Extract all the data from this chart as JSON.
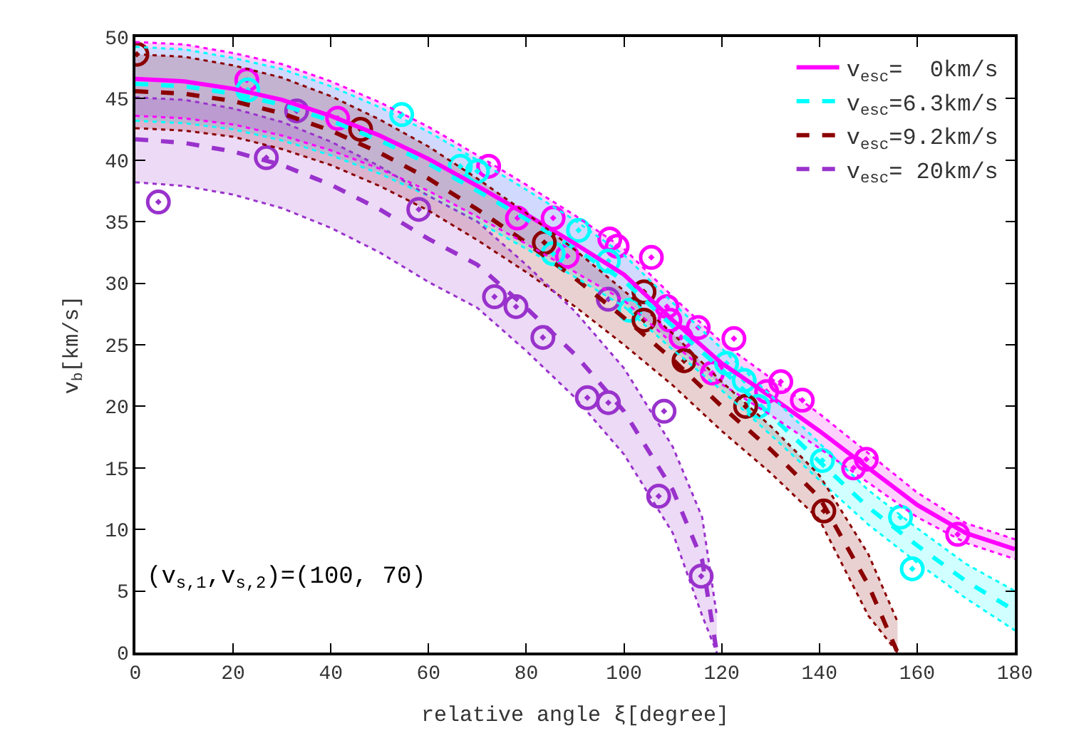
{
  "chart_data": {
    "type": "line",
    "xlabel": "relative angle ξ[degree]",
    "ylabel": "v$_{b}$[km/s]",
    "xlim": [
      0,
      180
    ],
    "xticks": [
      0,
      20,
      40,
      60,
      80,
      100,
      120,
      140,
      160,
      180
    ],
    "ylim": [
      0,
      50
    ],
    "yticks": [
      0,
      5,
      10,
      15,
      20,
      25,
      30,
      35,
      40,
      45,
      50
    ],
    "legend": "top right",
    "marker": "none",
    "annotations": [
      "(v$_{s,1}$,v$_{s,2}$)=(100, 70)"
    ],
    "series": [
      {
        "name": "v$_{esc}$=  0km/s",
        "color": "#ff00ff",
        "line_style": "solid",
        "x": [
          0,
          10,
          20,
          30,
          40,
          50,
          60,
          70,
          80,
          90,
          100,
          110,
          120,
          130,
          140,
          150,
          160,
          170,
          180
        ],
        "values": [
          46.6,
          46.4,
          45.8,
          44.9,
          43.6,
          42.0,
          40.1,
          37.9,
          35.6,
          33.2,
          30.7,
          27.0,
          23.5,
          20.8,
          18.0,
          15.0,
          12.0,
          9.7,
          8.4
        ],
        "lower": [
          43.6,
          43.4,
          42.9,
          42.0,
          40.8,
          39.3,
          37.5,
          35.4,
          33.2,
          30.9,
          28.6,
          25.1,
          21.8,
          19.3,
          16.6,
          13.8,
          11.0,
          8.9,
          7.6
        ],
        "upper": [
          49.6,
          49.4,
          48.7,
          47.8,
          46.4,
          44.7,
          42.7,
          40.4,
          38.0,
          35.5,
          32.8,
          28.9,
          25.2,
          22.3,
          19.4,
          16.2,
          13.0,
          10.5,
          9.2
        ]
      },
      {
        "name": "v$_{esc}$=6.3km/s",
        "color": "#00ffff",
        "line_style": "dashed",
        "x": [
          0,
          10,
          20,
          30,
          40,
          50,
          60,
          70,
          80,
          90,
          100,
          110,
          120,
          130,
          140,
          150,
          160,
          170,
          180
        ],
        "values": [
          46.2,
          46.0,
          45.4,
          44.5,
          43.2,
          41.6,
          39.7,
          37.5,
          35.2,
          32.8,
          30.2,
          26.5,
          23.0,
          19.3,
          15.5,
          11.8,
          8.7,
          5.8,
          3.4
        ],
        "lower": [
          43.2,
          43.0,
          42.5,
          41.6,
          40.4,
          38.9,
          37.1,
          35.0,
          32.8,
          30.5,
          28.1,
          24.6,
          21.3,
          17.7,
          14.0,
          10.4,
          7.3,
          4.4,
          1.8
        ],
        "upper": [
          49.2,
          49.0,
          48.3,
          47.4,
          46.0,
          44.3,
          42.3,
          40.0,
          37.6,
          35.1,
          32.3,
          28.4,
          24.7,
          20.9,
          17.0,
          13.2,
          10.1,
          7.2,
          5.0
        ]
      },
      {
        "name": "v$_{esc}$=9.2km/s",
        "color": "#8b0000",
        "line_style": "dashed",
        "x": [
          0,
          10,
          20,
          30,
          40,
          50,
          60,
          70,
          80,
          90,
          100,
          110,
          120,
          130,
          140,
          150,
          156
        ],
        "values": [
          45.6,
          45.4,
          44.8,
          43.8,
          42.4,
          40.6,
          38.5,
          36.0,
          33.3,
          30.4,
          27.2,
          23.8,
          20.0,
          16.5,
          12.6,
          5.5,
          0
        ],
        "lower": [
          42.6,
          42.4,
          41.9,
          40.9,
          39.6,
          37.9,
          35.9,
          33.5,
          30.9,
          28.1,
          25.0,
          21.7,
          18.0,
          14.6,
          10.8,
          3.0,
          0
        ],
        "upper": [
          48.6,
          48.4,
          47.7,
          46.7,
          45.2,
          43.3,
          41.1,
          38.5,
          35.7,
          32.7,
          29.4,
          25.9,
          22.0,
          18.4,
          14.4,
          8.0,
          2.5
        ]
      },
      {
        "name": "v$_{esc}$= 20km/s",
        "color": "#9932cc",
        "line_style": "dashed",
        "x": [
          0,
          10,
          20,
          30,
          40,
          50,
          60,
          70,
          80,
          90,
          100,
          110,
          116,
          119
        ],
        "values": [
          41.7,
          41.4,
          40.7,
          39.6,
          38.0,
          36.0,
          33.6,
          31.5,
          28.0,
          24.2,
          19.6,
          13.2,
          7.5,
          0
        ],
        "lower": [
          38.2,
          37.9,
          37.2,
          36.1,
          34.5,
          32.5,
          30.1,
          28.0,
          24.5,
          20.7,
          16.1,
          9.7,
          3.0,
          0
        ],
        "upper": [
          45.1,
          44.9,
          44.2,
          43.1,
          41.5,
          39.5,
          37.1,
          35.0,
          31.5,
          27.7,
          23.1,
          16.7,
          11.0,
          3.0
        ]
      },
      {
        "color": "#ff00ff",
        "line_style": "dotted",
        "x": [
          0,
          10,
          20,
          30,
          40,
          50,
          60,
          70,
          80,
          90,
          100,
          110,
          120,
          130,
          140,
          150,
          160,
          170,
          180
        ],
        "values": [
          43.6,
          43.4,
          42.9,
          42.0,
          40.8,
          39.3,
          37.5,
          35.4,
          33.2,
          30.9,
          28.6,
          25.1,
          21.8,
          19.3,
          16.6,
          13.8,
          11.0,
          8.9,
          7.6
        ]
      },
      {
        "color": "#ff00ff",
        "line_style": "dotted",
        "x": [
          0,
          10,
          20,
          30,
          40,
          50,
          60,
          70,
          80,
          90,
          100,
          110,
          120,
          130,
          140,
          150,
          160,
          170,
          180
        ],
        "values": [
          49.6,
          49.4,
          48.7,
          47.8,
          46.4,
          44.7,
          42.7,
          40.4,
          38.0,
          35.5,
          32.8,
          28.9,
          25.2,
          22.3,
          19.4,
          16.2,
          13.0,
          10.5,
          9.2
        ]
      },
      {
        "color": "#00ffff",
        "line_style": "dotted",
        "x": [
          0,
          10,
          20,
          30,
          40,
          50,
          60,
          70,
          80,
          90,
          100,
          110,
          120,
          130,
          140,
          150,
          160,
          170,
          180
        ],
        "values": [
          43.2,
          43.0,
          42.5,
          41.6,
          40.4,
          38.9,
          37.1,
          35.0,
          32.8,
          30.5,
          28.1,
          24.6,
          21.3,
          17.7,
          14.0,
          10.4,
          7.3,
          4.4,
          1.8
        ]
      },
      {
        "color": "#00ffff",
        "line_style": "dotted",
        "x": [
          0,
          10,
          20,
          30,
          40,
          50,
          60,
          70,
          80,
          90,
          100,
          110,
          120,
          130,
          140,
          150,
          160,
          170,
          180
        ],
        "values": [
          49.2,
          49.0,
          48.3,
          47.4,
          46.0,
          44.3,
          42.3,
          40.0,
          37.6,
          35.1,
          32.3,
          28.4,
          24.7,
          20.9,
          17.0,
          13.2,
          10.1,
          7.2,
          5.0
        ]
      },
      {
        "color": "#8b0000",
        "line_style": "dotted",
        "x": [
          0,
          10,
          20,
          30,
          40,
          50,
          60,
          70,
          80,
          90,
          100,
          110,
          120,
          130,
          140,
          150,
          156
        ],
        "values": [
          42.6,
          42.4,
          41.9,
          40.9,
          39.6,
          37.9,
          35.9,
          33.5,
          30.9,
          28.1,
          25.0,
          21.7,
          18.0,
          14.6,
          10.8,
          3.0,
          0
        ]
      },
      {
        "color": "#8b0000",
        "line_style": "dotted",
        "x": [
          0,
          10,
          20,
          30,
          40,
          50,
          60,
          70,
          80,
          90,
          100,
          110,
          120,
          130,
          140,
          150,
          156
        ],
        "values": [
          48.6,
          48.4,
          47.7,
          46.7,
          45.2,
          43.3,
          41.1,
          38.5,
          35.7,
          32.7,
          29.4,
          25.9,
          22.0,
          18.4,
          14.4,
          8.0,
          2.5
        ]
      },
      {
        "color": "#9932cc",
        "line_style": "dotted",
        "x": [
          0,
          10,
          20,
          30,
          40,
          50,
          60,
          70,
          80,
          90,
          100,
          110,
          116,
          119
        ],
        "values": [
          38.2,
          37.9,
          37.2,
          36.1,
          34.5,
          32.5,
          30.1,
          28.0,
          24.5,
          20.7,
          16.1,
          9.7,
          3.0,
          0
        ]
      },
      {
        "color": "#9932cc",
        "line_style": "dotted",
        "x": [
          0,
          10,
          20,
          30,
          40,
          50,
          60,
          70,
          80,
          90,
          100,
          110,
          116,
          119
        ],
        "values": [
          45.1,
          44.9,
          44.2,
          43.1,
          41.5,
          39.5,
          37.1,
          35.0,
          31.5,
          27.7,
          23.1,
          16.7,
          11.0,
          3.0
        ]
      },
      {
        "color": "#ff00ff",
        "type": "scatter",
        "marker": "circle",
        "x": [
          22.8,
          41.4,
          72.3,
          78.2,
          85.5,
          88.4,
          97.1,
          98.6,
          105.6,
          108.8,
          109.4,
          111.7,
          115.2,
          122.5,
          118.1,
          129.2,
          132.1,
          136.5,
          149.6,
          147.0,
          168.3
        ],
        "values": [
          46.5,
          43.4,
          39.5,
          35.3,
          35.3,
          32.2,
          33.6,
          33.0,
          32.1,
          28.1,
          27.0,
          25.6,
          26.4,
          25.5,
          22.7,
          21.2,
          22.0,
          20.5,
          15.7,
          15.0,
          9.6
        ]
      },
      {
        "color": "#00ffff",
        "type": "scatter",
        "marker": "circle",
        "x": [
          23.0,
          54.5,
          66.5,
          70.0,
          85.5,
          90.7,
          96.8,
          101.2,
          121.0,
          124.6,
          127.5,
          140.6,
          156.6,
          159.0
        ],
        "values": [
          45.7,
          43.7,
          39.5,
          39.1,
          32.4,
          34.3,
          31.8,
          27.8,
          23.5,
          22.1,
          20.0,
          15.6,
          11.0,
          6.8
        ]
      },
      {
        "color": "#8b0000",
        "type": "scatter",
        "marker": "circle",
        "x": [
          0.3,
          46.1,
          83.7,
          104.1,
          104.1,
          112.3,
          124.9,
          140.9
        ],
        "values": [
          48.6,
          42.5,
          33.3,
          29.3,
          27.0,
          23.7,
          20.0,
          11.5
        ]
      },
      {
        "color": "#9932cc",
        "type": "scatter",
        "marker": "circle",
        "x": [
          4.7,
          26.8,
          33.0,
          58.0,
          73.5,
          77.9,
          83.4,
          92.5,
          96.8,
          96.8,
          108.2,
          107.1,
          115.8
        ],
        "values": [
          36.6,
          40.2,
          44.0,
          36.0,
          28.9,
          28.1,
          25.6,
          20.7,
          20.3,
          28.7,
          19.6,
          12.7,
          6.2
        ]
      }
    ]
  }
}
